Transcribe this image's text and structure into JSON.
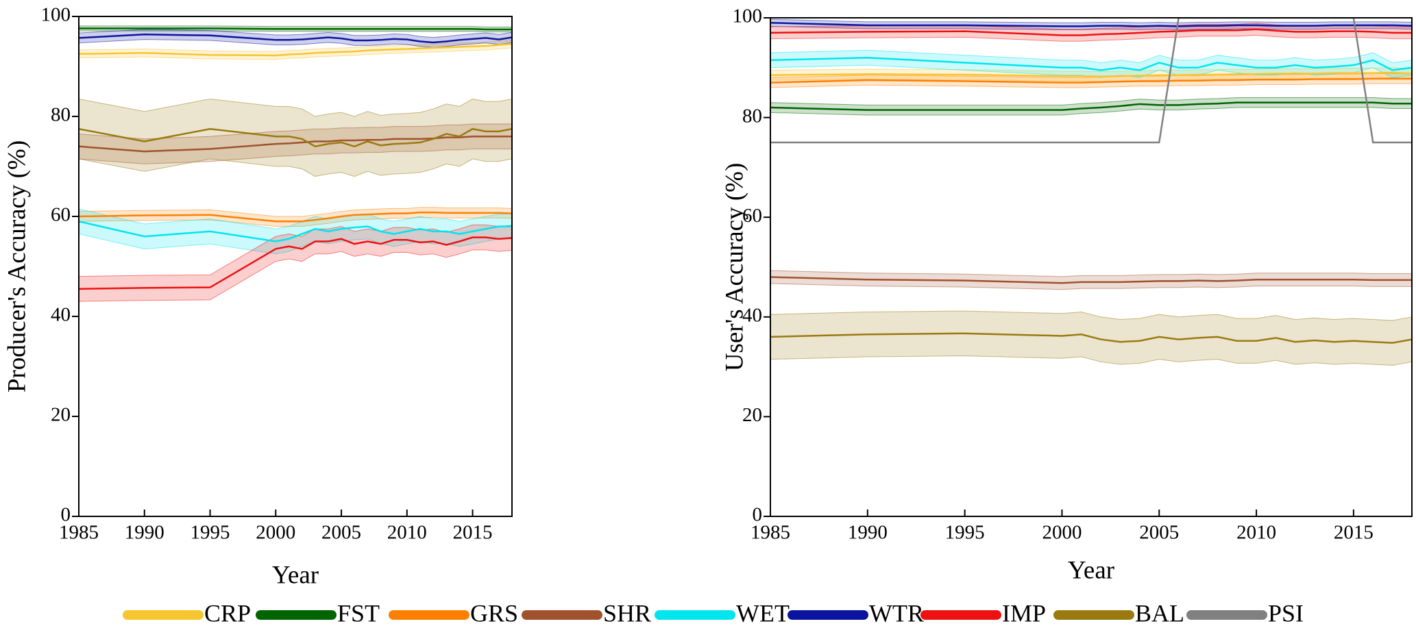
{
  "chart_data": [
    {
      "type": "line",
      "x_label": "Year",
      "y_label": "Producer's Accuracy (%)",
      "x": [
        1985,
        1990,
        1995,
        2000,
        2001,
        2002,
        2003,
        2004,
        2005,
        2006,
        2007,
        2008,
        2009,
        2010,
        2011,
        2012,
        2013,
        2014,
        2015,
        2016,
        2017,
        2018
      ],
      "xlim": [
        1985,
        2018
      ],
      "xticks": [
        1985,
        1990,
        1995,
        2000,
        2005,
        2010,
        2015
      ],
      "ylim": [
        0,
        100
      ],
      "yticks": [
        0,
        20,
        40,
        60,
        80,
        100
      ],
      "series": [
        {
          "color": "#f7c530",
          "error": 0.8,
          "values": [
            92.5,
            92.7,
            92.3,
            92.2,
            92.4,
            92.5,
            92.7,
            92.8,
            92.9,
            93,
            93.2,
            93.3,
            93.4,
            93.5,
            93.6,
            93.7,
            93.8,
            93.9,
            94,
            94.1,
            94.3,
            94.5
          ]
        },
        {
          "color": "#006400",
          "error": 0.5,
          "values": [
            97.6,
            97.6,
            97.6,
            97.5,
            97.5,
            97.5,
            97.5,
            97.5,
            97.5,
            97.5,
            97.5,
            97.5,
            97.5,
            97.5,
            97.5,
            97.5,
            97.5,
            97.5,
            97.5,
            97.4,
            97.4,
            97.4
          ]
        },
        {
          "color": "#ff8000",
          "error": 1,
          "values": [
            60,
            60.2,
            60.3,
            59,
            59,
            59,
            59.3,
            59.6,
            60,
            60.3,
            60.4,
            60.5,
            60.6,
            60.6,
            60.8,
            60.8,
            60.7,
            60.7,
            60.7,
            60.7,
            60.7,
            60.6
          ]
        },
        {
          "color": "#a0522d",
          "error": 2.5,
          "values": [
            74,
            73,
            73.5,
            74.5,
            74.6,
            74.8,
            75,
            75,
            75.2,
            75.2,
            75.3,
            75.3,
            75.5,
            75.5,
            75.5,
            75.6,
            75.8,
            75.8,
            76,
            76,
            76,
            76
          ]
        },
        {
          "color": "#00e5ee",
          "error": 2.5,
          "values": [
            59,
            56,
            57,
            55,
            55.5,
            56.5,
            57.5,
            57,
            57.5,
            57.8,
            58,
            57,
            56.5,
            57,
            57.5,
            57,
            57,
            56.5,
            57,
            57.5,
            58,
            58
          ]
        },
        {
          "color": "#0a14a0",
          "error": 1,
          "values": [
            95.7,
            96.4,
            96.2,
            95.3,
            95.3,
            95.4,
            95.6,
            95.8,
            95.6,
            95.2,
            95.2,
            95.3,
            95.5,
            95.4,
            95,
            94.8,
            95,
            95.3,
            95.5,
            95.7,
            95.4,
            95.8
          ]
        },
        {
          "color": "#ee1111",
          "error": 2.5,
          "values": [
            45.5,
            45.7,
            45.8,
            53.5,
            54,
            53.5,
            55,
            55,
            55.5,
            54.5,
            55,
            54.5,
            55.3,
            55.3,
            54.8,
            55,
            54.3,
            55,
            55.8,
            55.8,
            55.5,
            55.7
          ]
        },
        {
          "color": "#9a7a10",
          "error": 6,
          "values": [
            77.5,
            75,
            77.5,
            76,
            76,
            75.5,
            74,
            74.5,
            74.8,
            74,
            75,
            74.2,
            74.5,
            74.6,
            74.8,
            75.5,
            76.5,
            76,
            77.5,
            77,
            77,
            77.5
          ]
        }
      ]
    },
    {
      "type": "line",
      "x_label": "Year",
      "y_label": "User's Accuracy (%)",
      "x": [
        1985,
        1990,
        1995,
        2000,
        2001,
        2002,
        2003,
        2004,
        2005,
        2006,
        2007,
        2008,
        2009,
        2010,
        2011,
        2012,
        2013,
        2014,
        2015,
        2016,
        2017,
        2018
      ],
      "xlim": [
        1985,
        2018
      ],
      "xticks": [
        1985,
        1990,
        1995,
        2000,
        2005,
        2010,
        2015
      ],
      "ylim": [
        0,
        100
      ],
      "yticks": [
        0,
        20,
        40,
        60,
        80,
        100
      ],
      "series": [
        {
          "name": "CRP",
          "color": "#f7c530",
          "error": 1,
          "values": [
            88.5,
            88.7,
            88.6,
            88.3,
            88.3,
            88.2,
            88.3,
            88.4,
            88.5,
            88.5,
            88.6,
            88.6,
            88.7,
            88.7,
            88.8,
            88.8,
            88.8,
            88.9,
            88.9,
            88.9,
            89,
            88.8
          ]
        },
        {
          "name": "FST",
          "color": "#006400",
          "error": 1,
          "values": [
            82,
            81.5,
            81.5,
            81.5,
            81.8,
            82,
            82.3,
            82.7,
            82.5,
            82.5,
            82.7,
            82.8,
            83,
            83,
            83,
            83,
            83,
            83,
            83,
            83,
            82.8,
            82.8
          ]
        },
        {
          "name": "GRS",
          "color": "#ff8000",
          "error": 1,
          "values": [
            87,
            87.5,
            87.3,
            87,
            87,
            87.1,
            87.2,
            87.3,
            87.3,
            87.4,
            87.4,
            87.5,
            87.5,
            87.6,
            87.6,
            87.6,
            87.7,
            87.7,
            87.7,
            87.8,
            87.8,
            87.8
          ]
        },
        {
          "name": "SHR",
          "color": "#a0522d",
          "error": 1.3,
          "values": [
            48,
            47.5,
            47.3,
            46.8,
            47,
            47,
            47,
            47.1,
            47.2,
            47.2,
            47.3,
            47.2,
            47.3,
            47.5,
            47.5,
            47.5,
            47.5,
            47.5,
            47.5,
            47.4,
            47.4,
            47.4
          ]
        },
        {
          "name": "WET",
          "color": "#00e5ee",
          "error": 1.5,
          "values": [
            91.5,
            92,
            91,
            90,
            90,
            89.5,
            90,
            89.5,
            91,
            90,
            90,
            91,
            90.5,
            90,
            90,
            90.5,
            90,
            90.2,
            90.5,
            91.5,
            89.5,
            90
          ]
        },
        {
          "name": "WTR",
          "color": "#0a14a0",
          "error": 0.7,
          "values": [
            99,
            98.5,
            98.5,
            98.3,
            98.3,
            98.4,
            98.4,
            98.3,
            98.4,
            98.3,
            98.4,
            98.4,
            98.5,
            98.5,
            98.4,
            98.4,
            98.4,
            98.5,
            98.5,
            98.5,
            98.5,
            98.4
          ]
        },
        {
          "name": "IMP",
          "color": "#ee1111",
          "error": 1.2,
          "values": [
            97,
            97.2,
            97.3,
            96.5,
            96.5,
            96.7,
            96.8,
            97,
            97.2,
            97.3,
            97.5,
            97.5,
            97.5,
            97.7,
            97.4,
            97.2,
            97.2,
            97.3,
            97.3,
            97.2,
            97,
            97
          ]
        },
        {
          "name": "BAL",
          "color": "#9a7a10",
          "error": 4.5,
          "values": [
            36,
            36.5,
            36.7,
            36.2,
            36.5,
            35.5,
            35,
            35.2,
            36,
            35.5,
            35.8,
            36,
            35.2,
            35.2,
            35.8,
            35,
            35.3,
            35,
            35.2,
            35,
            34.8,
            35.5
          ]
        },
        {
          "name": "PSI",
          "color": "#808080",
          "values": [
            75,
            75,
            75,
            75,
            75,
            75,
            75,
            75,
            75,
            100,
            100,
            100,
            100,
            100,
            100,
            100,
            100,
            100,
            100,
            75,
            75,
            75
          ]
        }
      ]
    }
  ]
}
